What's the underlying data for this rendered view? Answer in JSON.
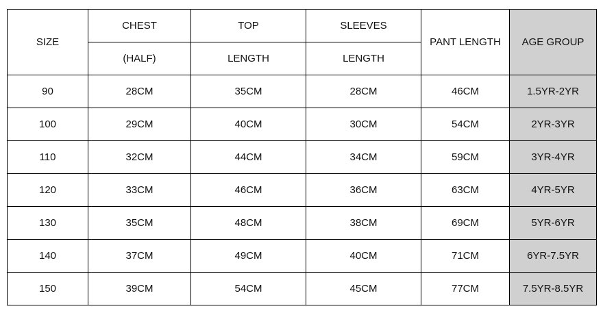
{
  "table": {
    "header_rows": [
      [
        "SIZE",
        "CHEST",
        "TOP",
        "SLEEVES",
        "PANT LENGTH",
        "AGE GROUP"
      ],
      [
        "(HALF)",
        "LENGTH",
        "LENGTH"
      ]
    ],
    "rows": [
      [
        "90",
        "28CM",
        "35CM",
        "28CM",
        "46CM",
        "1.5YR-2YR"
      ],
      [
        "100",
        "29CM",
        "40CM",
        "30CM",
        "54CM",
        "2YR-3YR"
      ],
      [
        "110",
        "32CM",
        "44CM",
        "34CM",
        "59CM",
        "3YR-4YR"
      ],
      [
        "120",
        "33CM",
        "46CM",
        "36CM",
        "63CM",
        "4YR-5YR"
      ],
      [
        "130",
        "35CM",
        "48CM",
        "38CM",
        "69CM",
        "5YR-6YR"
      ],
      [
        "140",
        "37CM",
        "49CM",
        "40CM",
        "71CM",
        "6YR-7.5YR"
      ],
      [
        "150",
        "39CM",
        "54CM",
        "45CM",
        "77CM",
        "7.5YR-8.5YR"
      ]
    ]
  }
}
